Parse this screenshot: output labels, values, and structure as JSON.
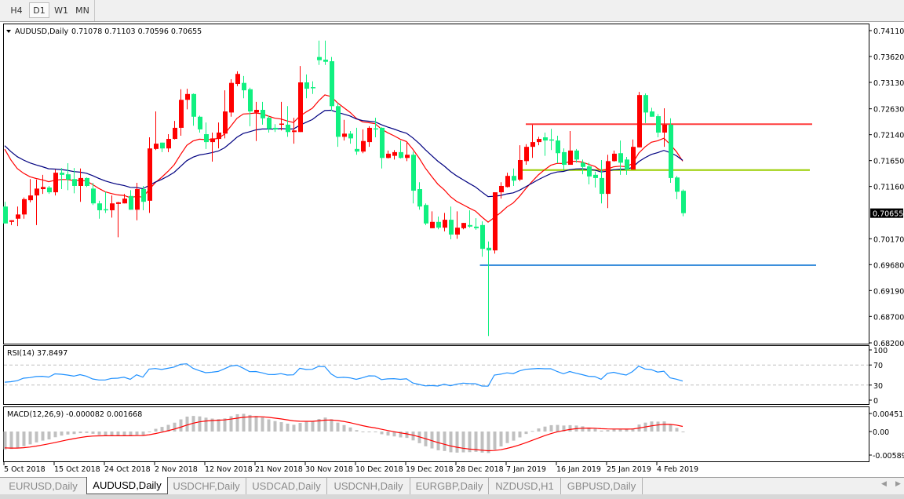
{
  "toolbar": {
    "timeframes": [
      {
        "label": "H4",
        "active": false
      },
      {
        "label": "D1",
        "active": true
      },
      {
        "label": "W1",
        "active": false
      },
      {
        "label": "MN",
        "active": false
      }
    ]
  },
  "chart": {
    "symbol_label": "AUDUSD,Daily",
    "ohlc_label": "0.71078 0.71103 0.70596 0.70655",
    "current_price": "0.70655",
    "price_ticks": [
      "0.74110",
      "0.73620",
      "0.73130",
      "0.72630",
      "0.72140",
      "0.71650",
      "0.71160",
      "0.70655",
      "0.70170",
      "0.69680",
      "0.69190",
      "0.68700",
      "0.68200"
    ],
    "colors": {
      "bull": "#ff0000",
      "bear": "#10f080",
      "ma_fast": "#ff0000",
      "ma_slow": "#000080"
    },
    "horizontal_lines": [
      {
        "price": 0.7234,
        "color": "#ff3b3b"
      },
      {
        "price": 0.7147,
        "color": "#9acd00"
      },
      {
        "price": 0.6967,
        "color": "#3c8fdc"
      }
    ]
  },
  "chart_data": {
    "type": "candlestick",
    "ylim": [
      0.682,
      0.7411
    ],
    "x_tick_labels": [
      "5 Oct 2018",
      "15 Oct 2018",
      "24 Oct 2018",
      "2 Nov 2018",
      "12 Nov 2018",
      "21 Nov 2018",
      "30 Nov 2018",
      "10 Dec 2018",
      "19 Dec 2018",
      "28 Dec 2018",
      "7 Jan 2019",
      "16 Jan 2019",
      "25 Jan 2019",
      "4 Feb 2019"
    ],
    "ohlc": [
      [
        0.7078,
        0.7087,
        0.7046,
        0.7046
      ],
      [
        0.7049,
        0.7052,
        0.7043,
        0.7052
      ],
      [
        0.7055,
        0.7078,
        0.7041,
        0.7063
      ],
      [
        0.7063,
        0.7095,
        0.7055,
        0.7092
      ],
      [
        0.709,
        0.713,
        0.7086,
        0.7099
      ],
      [
        0.7099,
        0.7129,
        0.7043,
        0.7112
      ],
      [
        0.7111,
        0.7138,
        0.7102,
        0.7115
      ],
      [
        0.7114,
        0.7117,
        0.7102,
        0.7105
      ],
      [
        0.7105,
        0.7148,
        0.7099,
        0.7142
      ],
      [
        0.7142,
        0.7151,
        0.7111,
        0.7138
      ],
      [
        0.7139,
        0.716,
        0.7109,
        0.7129
      ],
      [
        0.713,
        0.7151,
        0.7103,
        0.7117
      ],
      [
        0.7117,
        0.715,
        0.7087,
        0.7132
      ],
      [
        0.7132,
        0.7133,
        0.7115,
        0.7117
      ],
      [
        0.7112,
        0.7123,
        0.7081,
        0.7084
      ],
      [
        0.7084,
        0.7089,
        0.7055,
        0.7071
      ],
      [
        0.7073,
        0.7106,
        0.7066,
        0.7071
      ],
      [
        0.7071,
        0.7099,
        0.7057,
        0.7084
      ],
      [
        0.7083,
        0.7087,
        0.702,
        0.7086
      ],
      [
        0.7084,
        0.7102,
        0.7084,
        0.7093
      ],
      [
        0.7098,
        0.7109,
        0.7072,
        0.7072
      ],
      [
        0.7072,
        0.7123,
        0.7052,
        0.7111
      ],
      [
        0.7111,
        0.7117,
        0.7071,
        0.7087
      ],
      [
        0.7089,
        0.7209,
        0.7066,
        0.7188
      ],
      [
        0.7187,
        0.7258,
        0.7185,
        0.7197
      ],
      [
        0.7199,
        0.7199,
        0.7181,
        0.7188
      ],
      [
        0.7188,
        0.7215,
        0.7181,
        0.7206
      ],
      [
        0.7206,
        0.724,
        0.7205,
        0.7227
      ],
      [
        0.7227,
        0.73,
        0.7212,
        0.728
      ],
      [
        0.728,
        0.7301,
        0.7262,
        0.7291
      ],
      [
        0.7291,
        0.7292,
        0.7231,
        0.7248
      ],
      [
        0.7248,
        0.725,
        0.7218,
        0.7224
      ],
      [
        0.7215,
        0.7237,
        0.7187,
        0.72
      ],
      [
        0.72,
        0.7218,
        0.7163,
        0.7207
      ],
      [
        0.7206,
        0.7237,
        0.7188,
        0.7218
      ],
      [
        0.7216,
        0.7298,
        0.7207,
        0.7258
      ],
      [
        0.7256,
        0.7319,
        0.7248,
        0.7312
      ],
      [
        0.731,
        0.7334,
        0.7306,
        0.7329
      ],
      [
        0.7312,
        0.7325,
        0.7283,
        0.7298
      ],
      [
        0.73,
        0.7303,
        0.723,
        0.7258
      ],
      [
        0.7256,
        0.7276,
        0.7202,
        0.7261
      ],
      [
        0.7261,
        0.7276,
        0.7233,
        0.7245
      ],
      [
        0.7246,
        0.725,
        0.7218,
        0.7225
      ],
      [
        0.7227,
        0.7234,
        0.7219,
        0.7224
      ],
      [
        0.7233,
        0.7276,
        0.7222,
        0.7235
      ],
      [
        0.7233,
        0.7268,
        0.721,
        0.7219
      ],
      [
        0.7219,
        0.7246,
        0.7197,
        0.7222
      ],
      [
        0.7219,
        0.7344,
        0.7219,
        0.7313
      ],
      [
        0.7313,
        0.7328,
        0.7283,
        0.7301
      ],
      [
        0.7304,
        0.7315,
        0.7291,
        0.7303
      ],
      [
        0.7361,
        0.7392,
        0.7346,
        0.7355
      ],
      [
        0.7356,
        0.7392,
        0.7346,
        0.7352
      ],
      [
        0.7353,
        0.7361,
        0.7259,
        0.7268
      ],
      [
        0.7268,
        0.7274,
        0.7191,
        0.721
      ],
      [
        0.721,
        0.7242,
        0.7203,
        0.7216
      ],
      [
        0.7216,
        0.7221,
        0.7197,
        0.7207
      ],
      [
        0.7187,
        0.7227,
        0.7176,
        0.7182
      ],
      [
        0.7182,
        0.7224,
        0.7179,
        0.7202
      ],
      [
        0.72,
        0.723,
        0.7191,
        0.7227
      ],
      [
        0.7226,
        0.7246,
        0.7209,
        0.7225
      ],
      [
        0.7227,
        0.7228,
        0.715,
        0.717
      ],
      [
        0.717,
        0.7184,
        0.7169,
        0.7178
      ],
      [
        0.7174,
        0.7185,
        0.7167,
        0.7181
      ],
      [
        0.7181,
        0.7203,
        0.7169,
        0.717
      ],
      [
        0.717,
        0.72,
        0.7164,
        0.7176
      ],
      [
        0.7176,
        0.7182,
        0.7084,
        0.7108
      ],
      [
        0.7111,
        0.7124,
        0.7072,
        0.7078
      ],
      [
        0.7081,
        0.7084,
        0.7043,
        0.7046
      ],
      [
        0.7037,
        0.7069,
        0.7037,
        0.7049
      ],
      [
        0.7049,
        0.7059,
        0.7035,
        0.7038
      ],
      [
        0.7038,
        0.7066,
        0.7031,
        0.7053
      ],
      [
        0.7053,
        0.7078,
        0.7016,
        0.7025
      ],
      [
        0.7025,
        0.7069,
        0.7017,
        0.7038
      ],
      [
        0.7037,
        0.7047,
        0.7035,
        0.7047
      ],
      [
        0.7043,
        0.7071,
        0.7038,
        0.704
      ],
      [
        0.704,
        0.7056,
        0.7034,
        0.7037
      ],
      [
        0.7043,
        0.705,
        0.6983,
        0.6998
      ],
      [
        0.7,
        0.7012,
        0.6833,
        0.6995
      ],
      [
        0.6995,
        0.7105,
        0.6989,
        0.7105
      ],
      [
        0.7105,
        0.7124,
        0.7093,
        0.7117
      ],
      [
        0.7115,
        0.7142,
        0.7114,
        0.7136
      ],
      [
        0.7136,
        0.715,
        0.7117,
        0.7127
      ],
      [
        0.7129,
        0.7194,
        0.7126,
        0.7166
      ],
      [
        0.7164,
        0.7196,
        0.7157,
        0.7191
      ],
      [
        0.7191,
        0.7233,
        0.717,
        0.72
      ],
      [
        0.72,
        0.721,
        0.7194,
        0.7206
      ],
      [
        0.7209,
        0.7218,
        0.7174,
        0.7203
      ],
      [
        0.7205,
        0.7225,
        0.7185,
        0.7203
      ],
      [
        0.7203,
        0.7212,
        0.716,
        0.7179
      ],
      [
        0.7181,
        0.7188,
        0.7147,
        0.7157
      ],
      [
        0.7157,
        0.7221,
        0.7157,
        0.7184
      ],
      [
        0.7184,
        0.7187,
        0.7161,
        0.7167
      ],
      [
        0.7161,
        0.7167,
        0.7139,
        0.7153
      ],
      [
        0.7154,
        0.7161,
        0.712,
        0.7135
      ],
      [
        0.7138,
        0.7144,
        0.7114,
        0.7132
      ],
      [
        0.7132,
        0.7166,
        0.7084,
        0.7102
      ],
      [
        0.7102,
        0.7176,
        0.7075,
        0.7164
      ],
      [
        0.7164,
        0.7184,
        0.7163,
        0.7178
      ],
      [
        0.7179,
        0.7203,
        0.7138,
        0.7161
      ],
      [
        0.7167,
        0.7172,
        0.7138,
        0.7148
      ],
      [
        0.7148,
        0.7205,
        0.7148,
        0.7191
      ],
      [
        0.719,
        0.7295,
        0.719,
        0.7289
      ],
      [
        0.7289,
        0.7292,
        0.7236,
        0.7256
      ],
      [
        0.7258,
        0.7265,
        0.7248,
        0.7248
      ],
      [
        0.7249,
        0.7253,
        0.7209,
        0.7218
      ],
      [
        0.7218,
        0.7264,
        0.7191,
        0.7233
      ],
      [
        0.7233,
        0.7245,
        0.7123,
        0.7132
      ],
      [
        0.7133,
        0.7136,
        0.7092,
        0.7106
      ],
      [
        0.71078,
        0.71103,
        0.70596,
        0.70655
      ]
    ]
  },
  "rsi": {
    "label": "RSI(14) 37.8497",
    "ticks": [
      "100",
      "70",
      "30",
      "0"
    ],
    "levels": [
      70,
      30
    ],
    "color": "#1e90ff"
  },
  "macd": {
    "label": "MACD(12,26,9) -0.000082 0.001668",
    "ticks": [
      "0.004517",
      "0.00",
      "-0.005899"
    ],
    "range": [
      -0.005899,
      0.004517
    ],
    "histogram_color": "#c0c0c0",
    "signal_color": "#ff0000"
  },
  "tabs": [
    {
      "label": "EURUSD,Daily",
      "active": false
    },
    {
      "label": "AUDUSD,Daily",
      "active": true
    },
    {
      "label": "USDCHF,Daily",
      "active": false
    },
    {
      "label": "USDCAD,Daily",
      "active": false
    },
    {
      "label": "USDCNH,Daily",
      "active": false
    },
    {
      "label": "EURGBP,Daily",
      "active": false
    },
    {
      "label": "NZDUSD,H1",
      "active": false
    },
    {
      "label": "GBPUSD,Daily",
      "active": false
    }
  ]
}
